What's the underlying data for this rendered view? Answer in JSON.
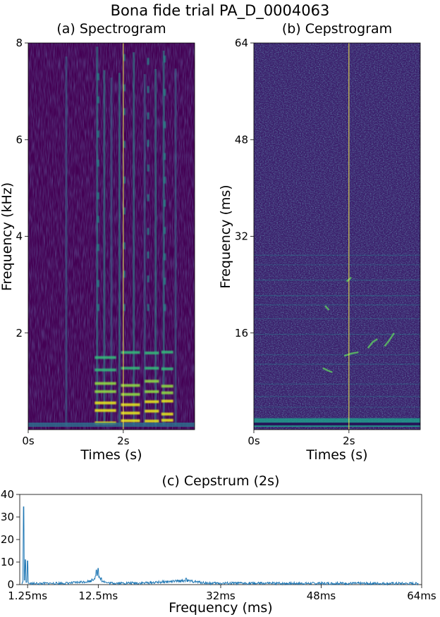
{
  "figure": {
    "title": "Bona fide trial PA_D_0004063"
  },
  "chart_data": [
    {
      "type": "heatmap",
      "subtitle": "(a) Spectrogram",
      "xlabel": "Times (s)",
      "ylabel": "Frequency (kHz)",
      "xlim": [
        0,
        3.5
      ],
      "ylim": [
        0,
        8
      ],
      "x_ticks": [
        {
          "value": 0,
          "label": "0s"
        },
        {
          "value": 2,
          "label": "2s"
        }
      ],
      "y_ticks": [
        {
          "value": 2,
          "label": "2"
        },
        {
          "value": 4,
          "label": "4"
        },
        {
          "value": 6,
          "label": "6"
        },
        {
          "value": 8,
          "label": "8"
        }
      ],
      "marker_time": 2,
      "colormap": "viridis",
      "colors": {
        "background": "#440154",
        "marker": "#f5e94a"
      }
    },
    {
      "type": "heatmap",
      "subtitle": "(b) Cepstrogram",
      "xlabel": "Times (s)",
      "ylabel": "Frequency (ms)",
      "xlim": [
        0,
        3.5
      ],
      "ylim": [
        0,
        64
      ],
      "x_ticks": [
        {
          "value": 0,
          "label": "0s"
        },
        {
          "value": 2,
          "label": "2s"
        }
      ],
      "y_ticks": [
        {
          "value": 16,
          "label": "16"
        },
        {
          "value": 32,
          "label": "32"
        },
        {
          "value": 48,
          "label": "48"
        },
        {
          "value": 64,
          "label": "64"
        }
      ],
      "marker_time": 2,
      "colormap": "viridis",
      "colors": {
        "background": "#3b1f6b",
        "marker": "#f5e94a"
      }
    },
    {
      "type": "line",
      "subtitle": "(c) Cepstrum (2s)",
      "xlabel": "Frequency (ms)",
      "ylabel": "",
      "xlim": [
        0,
        64
      ],
      "ylim": [
        0,
        40
      ],
      "x_ticks": [
        {
          "value": 1.25,
          "label": "1.25ms"
        },
        {
          "value": 12.5,
          "label": "12.5ms"
        },
        {
          "value": 32,
          "label": "32ms"
        },
        {
          "value": 48,
          "label": "48ms"
        },
        {
          "value": 64,
          "label": "64ms"
        }
      ],
      "y_ticks": [
        {
          "value": 0,
          "label": "0"
        },
        {
          "value": 10,
          "label": "10"
        },
        {
          "value": 20,
          "label": "20"
        },
        {
          "value": 30,
          "label": "30"
        },
        {
          "value": 40,
          "label": "40"
        }
      ],
      "peaks": [
        {
          "x": 0.3,
          "y": 0.4
        },
        {
          "x": 0.6,
          "y": 34.5
        },
        {
          "x": 0.75,
          "y": 2
        },
        {
          "x": 0.9,
          "y": 11
        },
        {
          "x": 1.05,
          "y": 1
        },
        {
          "x": 1.25,
          "y": 10.5
        },
        {
          "x": 1.4,
          "y": 0.6
        },
        {
          "x": 2.5,
          "y": 0.4
        },
        {
          "x": 5,
          "y": 0.6
        },
        {
          "x": 8,
          "y": 0.8
        },
        {
          "x": 11.5,
          "y": 2.5
        },
        {
          "x": 12.2,
          "y": 6.5
        },
        {
          "x": 12.5,
          "y": 7.2
        },
        {
          "x": 13,
          "y": 3
        },
        {
          "x": 14,
          "y": 0.8
        },
        {
          "x": 20,
          "y": 0.9
        },
        {
          "x": 26.5,
          "y": 2.8
        },
        {
          "x": 30,
          "y": 0.7
        },
        {
          "x": 40,
          "y": 0.6
        },
        {
          "x": 52,
          "y": 0.6
        },
        {
          "x": 63.5,
          "y": 0.5
        }
      ],
      "colors": {
        "line": "#1f77b4"
      }
    }
  ]
}
